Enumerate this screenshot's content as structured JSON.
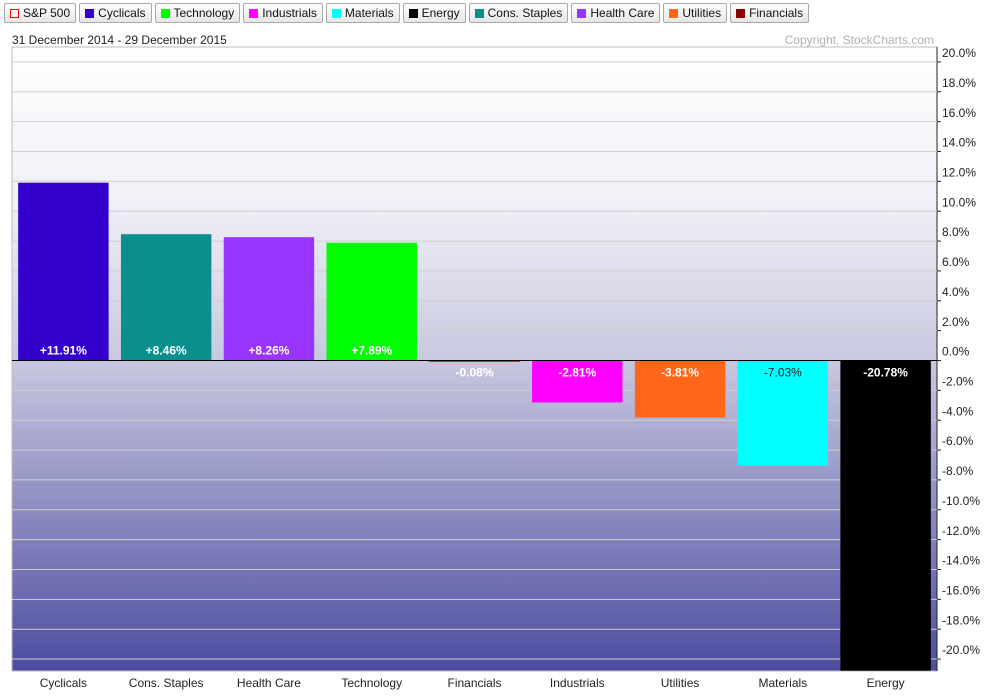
{
  "chart_data": {
    "type": "bar",
    "subtitle": "31 December 2014 - 29 December 2015",
    "copyright": "Copyright, StockCharts.com",
    "legend": [
      {
        "name": "S&P 500",
        "color": "#ff0000",
        "marker": "hollow"
      },
      {
        "name": "Cyclicals",
        "color": "#3300cc"
      },
      {
        "name": "Technology",
        "color": "#00ff00"
      },
      {
        "name": "Industrials",
        "color": "#ff00ff"
      },
      {
        "name": "Materials",
        "color": "#00ffff"
      },
      {
        "name": "Energy",
        "color": "#000000"
      },
      {
        "name": "Cons. Staples",
        "color": "#0a8f8f"
      },
      {
        "name": "Health Care",
        "color": "#9933ff"
      },
      {
        "name": "Utilities",
        "color": "#ff6619"
      },
      {
        "name": "Financials",
        "color": "#8b0000"
      }
    ],
    "categories": [
      "Cyclicals",
      "Cons. Staples",
      "Health Care",
      "Technology",
      "Financials",
      "Industrials",
      "Utilities",
      "Materials",
      "Energy"
    ],
    "values": [
      11.91,
      8.46,
      8.26,
      7.89,
      -0.08,
      -2.81,
      -3.81,
      -7.03,
      -20.78
    ],
    "value_labels": [
      "+11.91%",
      "+8.46%",
      "+8.26%",
      "+7.89%",
      "-0.08%",
      "-2.81%",
      "-3.81%",
      "-7.03%",
      "-20.78%"
    ],
    "colors": [
      "#3300cc",
      "#0a8f8f",
      "#9933ff",
      "#00ff00",
      "#8b0000",
      "#ff00ff",
      "#ff6619",
      "#00ffff",
      "#000000"
    ],
    "ylim": [
      -20.8,
      21
    ],
    "yticks": [
      {
        "value": 20,
        "label": "20.0%"
      },
      {
        "value": 18,
        "label": "18.0%"
      },
      {
        "value": 16,
        "label": "16.0%"
      },
      {
        "value": 14,
        "label": "14.0%"
      },
      {
        "value": 12,
        "label": "12.0%"
      },
      {
        "value": 10,
        "label": "10.0%"
      },
      {
        "value": 8,
        "label": "8.0%"
      },
      {
        "value": 6,
        "label": "6.0%"
      },
      {
        "value": 4,
        "label": "4.0%"
      },
      {
        "value": 2,
        "label": "2.0%"
      },
      {
        "value": 0,
        "label": "0.0%"
      },
      {
        "value": -2,
        "label": "-2.0%"
      },
      {
        "value": -4,
        "label": "-4.0%"
      },
      {
        "value": -6,
        "label": "-6.0%"
      },
      {
        "value": -8,
        "label": "-8.0%"
      },
      {
        "value": -10,
        "label": "-10.0%"
      },
      {
        "value": -12,
        "label": "-12.0%"
      },
      {
        "value": -14,
        "label": "-14.0%"
      },
      {
        "value": -16,
        "label": "-16.0%"
      },
      {
        "value": -18,
        "label": "-18.0%"
      },
      {
        "value": -20,
        "label": "-20.0%"
      }
    ],
    "grid": true
  }
}
